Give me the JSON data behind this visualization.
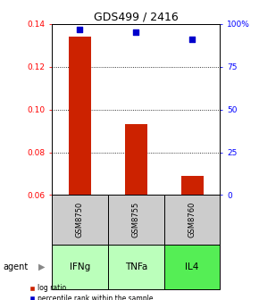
{
  "title": "GDS499 / 2416",
  "categories": [
    "IFNg",
    "TNFa",
    "IL4"
  ],
  "gsm_labels": [
    "GSM8750",
    "GSM8755",
    "GSM8760"
  ],
  "log_ratios": [
    0.134,
    0.093,
    0.069
  ],
  "percentile_ranks": [
    97,
    95,
    91
  ],
  "ylim_left": [
    0.06,
    0.14
  ],
  "ylim_right": [
    0,
    100
  ],
  "yticks_left": [
    0.06,
    0.08,
    0.1,
    0.12,
    0.14
  ],
  "yticks_right": [
    0,
    25,
    50,
    75,
    100
  ],
  "ytick_labels_right": [
    "0",
    "25",
    "50",
    "75",
    "100%"
  ],
  "bar_color": "#cc2200",
  "dot_color": "#0000cc",
  "bar_width": 0.4,
  "agent_colors": [
    "#bbffbb",
    "#bbffbb",
    "#55ee55"
  ],
  "gsm_row_color": "#cccccc",
  "legend_bar_label": "log ratio",
  "legend_dot_label": "percentile rank within the sample",
  "agent_label": "agent"
}
